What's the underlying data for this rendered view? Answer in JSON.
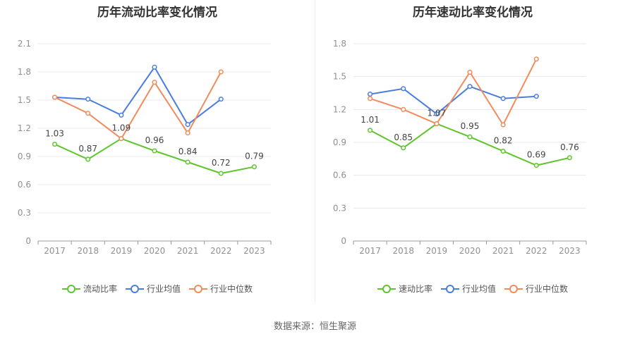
{
  "charts": [
    {
      "id": "left",
      "title": "历年流动比率变化情况",
      "chart_data": {
        "type": "line",
        "categories": [
          "2017",
          "2018",
          "2019",
          "2020",
          "2021",
          "2022",
          "2023"
        ],
        "ylim": [
          0,
          2.1
        ],
        "yticks": [
          "0",
          "0.3",
          "0.6",
          "0.9",
          "1.2",
          "1.5",
          "1.8",
          "2.1"
        ],
        "grid": true,
        "legend_position": "bottom",
        "series": [
          {
            "name": "流动比率",
            "color": "#5ec52c",
            "values": [
              1.03,
              0.87,
              1.09,
              0.96,
              0.84,
              0.72,
              0.79
            ],
            "labels": [
              "1.03",
              "0.87",
              "1.09",
              "0.96",
              "0.84",
              "0.72",
              "0.79"
            ]
          },
          {
            "name": "行业均值",
            "color": "#4a7de0",
            "values": [
              1.53,
              1.51,
              1.34,
              1.85,
              1.24,
              1.51,
              null
            ]
          },
          {
            "name": "行业中位数",
            "color": "#f08c5c",
            "values": [
              1.53,
              1.36,
              1.09,
              1.69,
              1.15,
              1.8,
              null
            ]
          }
        ]
      }
    },
    {
      "id": "right",
      "title": "历年速动比率变化情况",
      "chart_data": {
        "type": "line",
        "categories": [
          "2017",
          "2018",
          "2019",
          "2020",
          "2021",
          "2022",
          "2023"
        ],
        "ylim": [
          0,
          1.8
        ],
        "yticks": [
          "0",
          "0.3",
          "0.6",
          "0.9",
          "1.2",
          "1.5",
          "1.8"
        ],
        "grid": true,
        "legend_position": "bottom",
        "series": [
          {
            "name": "速动比率",
            "color": "#5ec52c",
            "values": [
              1.01,
              0.85,
              1.07,
              0.95,
              0.82,
              0.69,
              0.76
            ],
            "labels": [
              "1.01",
              "0.85",
              "1.07",
              "0.95",
              "0.82",
              "0.69",
              "0.76"
            ]
          },
          {
            "name": "行业均值",
            "color": "#4a7de0",
            "values": [
              1.34,
              1.39,
              1.16,
              1.41,
              1.3,
              1.32,
              null
            ]
          },
          {
            "name": "行业中位数",
            "color": "#f08c5c",
            "values": [
              1.3,
              1.2,
              1.07,
              1.54,
              1.06,
              1.66,
              null
            ]
          }
        ]
      }
    }
  ],
  "source": "数据来源：恒生聚源"
}
